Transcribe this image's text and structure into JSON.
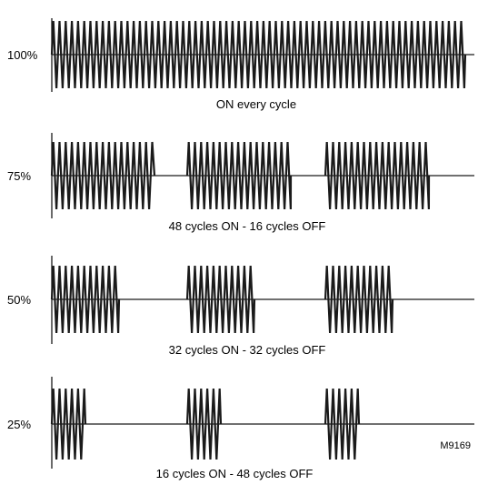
{
  "figure_id": "M9169",
  "colors": {
    "line": "#1a1a1a",
    "background": "#ffffff"
  },
  "panels": [
    {
      "label": "100%",
      "caption": "ON every cycle",
      "bursts": 1
    },
    {
      "label": "75%",
      "caption": "48 cycles ON - 16 cycles OFF",
      "bursts": 3
    },
    {
      "label": "50%",
      "caption": "32 cycles ON - 32 cycles OFF",
      "bursts": 3
    },
    {
      "label": "25%",
      "caption": "16 cycles ON - 48 cycles OFF",
      "bursts": 3
    }
  ]
}
